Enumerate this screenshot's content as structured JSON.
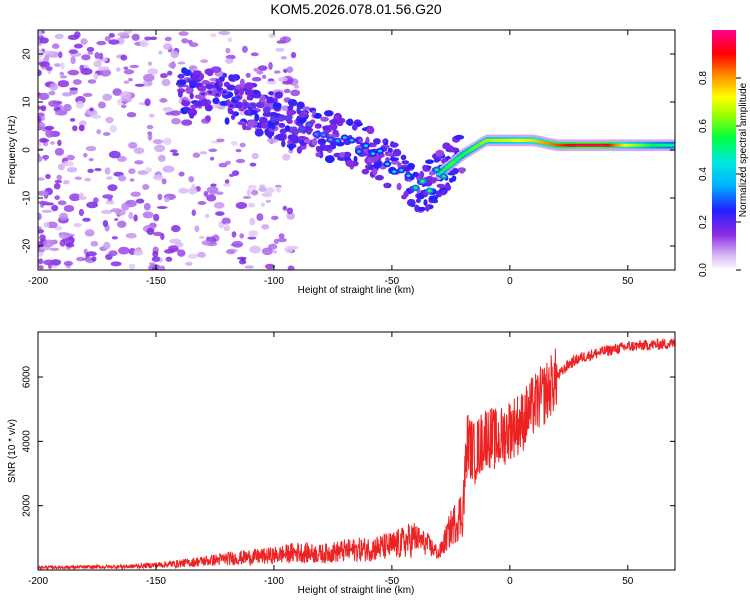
{
  "chart_data": [
    {
      "type": "heatmap",
      "title": "KOM5.2026.078.01.56.G20",
      "xlabel": "Height of straight line (km)",
      "ylabel": "Frequency (Hz)",
      "xlim": [
        -200,
        70
      ],
      "ylim": [
        -25,
        25
      ],
      "x_ticks": [
        -200,
        -150,
        -100,
        -50,
        0,
        50
      ],
      "y_ticks": [
        -20,
        -10,
        0,
        10,
        20
      ],
      "colorbar": {
        "label": "Normalized spectral amplitude",
        "range": [
          0,
          1
        ],
        "ticks": [
          0.0,
          0.2,
          0.4,
          0.6,
          0.8
        ],
        "palette": [
          "#ffffff",
          "#d8b8f4",
          "#8a2be2",
          "#2020ff",
          "#00d8ff",
          "#00ff40",
          "#ffff00",
          "#ff8000",
          "#ff0000",
          "#ff0090"
        ]
      },
      "ridge": {
        "description": "dominant frequency vs height",
        "x": [
          -135,
          -120,
          -110,
          -100,
          -90,
          -80,
          -70,
          -60,
          -50,
          -45,
          -40,
          -35,
          -30,
          -25,
          -20,
          -10,
          0,
          10,
          20,
          30,
          40,
          50,
          60,
          70
        ],
        "freq": [
          12,
          11,
          9,
          7,
          5,
          3,
          2,
          0,
          -3,
          -5,
          -8,
          -8,
          -5,
          -3,
          -1,
          2,
          2,
          2,
          1,
          1,
          1,
          1,
          1,
          1
        ],
        "amplitude": [
          0.2,
          0.25,
          0.28,
          0.3,
          0.3,
          0.35,
          0.4,
          0.45,
          0.45,
          0.4,
          0.55,
          0.6,
          0.5,
          0.6,
          0.55,
          0.65,
          0.7,
          0.75,
          0.85,
          0.95,
          0.95,
          0.7,
          0.55,
          0.5
        ]
      }
    },
    {
      "type": "line",
      "xlabel": "Height of straight line (km)",
      "ylabel": "SNR (10 * v/v)",
      "xlim": [
        -200,
        70
      ],
      "ylim": [
        0,
        7400
      ],
      "x_ticks": [
        -200,
        -150,
        -100,
        -50,
        0,
        50
      ],
      "y_ticks": [
        2000,
        4000,
        6000
      ],
      "series": [
        {
          "name": "SNR",
          "color": "#ee2222",
          "x": [
            -200,
            -180,
            -160,
            -140,
            -120,
            -110,
            -100,
            -90,
            -80,
            -70,
            -60,
            -50,
            -45,
            -40,
            -35,
            -30,
            -25,
            -20,
            -18,
            -15,
            -10,
            -5,
            0,
            5,
            10,
            15,
            20,
            25,
            30,
            40,
            50,
            60,
            70
          ],
          "y": [
            80,
            90,
            110,
            200,
            350,
            400,
            450,
            550,
            500,
            600,
            650,
            750,
            850,
            1000,
            800,
            500,
            1300,
            1800,
            4000,
            3600,
            4200,
            4000,
            4400,
            4600,
            5100,
            5500,
            6000,
            6400,
            6600,
            6800,
            6950,
            7000,
            7050
          ]
        }
      ]
    }
  ]
}
